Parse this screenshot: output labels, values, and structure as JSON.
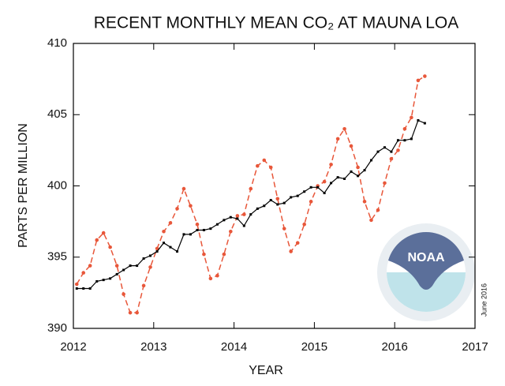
{
  "chart_data": {
    "type": "line",
    "title": "RECENT MONTHLY MEAN CO₂ AT MAUNA LOA",
    "xlabel": "YEAR",
    "ylabel": "PARTS PER MILLION",
    "logo_text": "NOAA",
    "date_note": "June 2016",
    "xlim": [
      2012,
      2017
    ],
    "xticks": [
      2012,
      2013,
      2014,
      2015,
      2016,
      2017
    ],
    "ylim": [
      390,
      410
    ],
    "yticks": [
      390,
      395,
      400,
      405,
      410
    ],
    "x": [
      2012.042,
      2012.125,
      2012.208,
      2012.292,
      2012.375,
      2012.458,
      2012.542,
      2012.625,
      2012.708,
      2012.792,
      2012.875,
      2012.958,
      2013.042,
      2013.125,
      2013.208,
      2013.292,
      2013.375,
      2013.458,
      2013.542,
      2013.625,
      2013.708,
      2013.792,
      2013.875,
      2013.958,
      2014.042,
      2014.125,
      2014.208,
      2014.292,
      2014.375,
      2014.458,
      2014.542,
      2014.625,
      2014.708,
      2014.792,
      2014.875,
      2014.958,
      2015.042,
      2015.125,
      2015.208,
      2015.292,
      2015.375,
      2015.458,
      2015.542,
      2015.625,
      2015.708,
      2015.792,
      2015.875,
      2015.958,
      2016.042,
      2016.125,
      2016.208,
      2016.292,
      2016.375
    ],
    "series": [
      {
        "color": "#e8573a",
        "style": "dashed",
        "values": [
          393.1,
          393.9,
          394.4,
          396.2,
          396.7,
          395.7,
          394.4,
          392.4,
          391.1,
          391.1,
          393.0,
          394.3,
          395.6,
          396.8,
          397.4,
          398.4,
          399.8,
          398.6,
          397.3,
          395.2,
          393.5,
          393.7,
          395.2,
          396.8,
          397.9,
          398.0,
          399.8,
          401.4,
          401.8,
          401.3,
          399.1,
          397.0,
          395.4,
          396.0,
          397.3,
          398.9,
          400.0,
          400.3,
          401.5,
          403.3,
          404.0,
          402.8,
          401.3,
          398.9,
          397.6,
          398.3,
          400.2,
          401.9,
          402.5,
          404.0,
          404.8,
          407.4,
          407.7
        ]
      },
      {
        "color": "#000000",
        "style": "solid",
        "values": [
          392.8,
          392.8,
          392.8,
          393.3,
          393.4,
          393.5,
          393.8,
          394.1,
          394.4,
          394.4,
          394.9,
          395.1,
          395.4,
          396.0,
          395.7,
          395.4,
          396.6,
          396.6,
          396.9,
          396.9,
          397.0,
          397.3,
          397.6,
          397.8,
          397.7,
          397.2,
          398.0,
          398.4,
          398.6,
          399.0,
          398.7,
          398.8,
          399.2,
          399.3,
          399.6,
          399.9,
          399.9,
          399.5,
          400.2,
          400.6,
          400.5,
          401.0,
          400.7,
          401.1,
          401.8,
          402.4,
          402.7,
          402.4,
          403.2,
          403.2,
          403.3,
          404.6,
          404.4
        ]
      }
    ]
  }
}
